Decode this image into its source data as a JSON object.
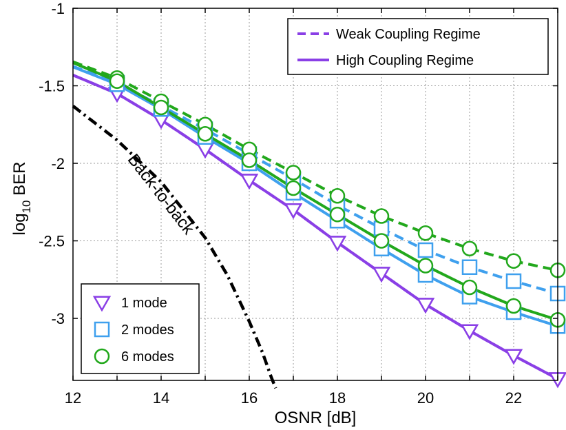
{
  "chart_data": {
    "type": "line",
    "title": "",
    "xlabel": "OSNR  [dB]",
    "ylabel_main": "log",
    "ylabel_sub": "10",
    "ylabel_tail": " BER",
    "xlim": [
      12,
      23
    ],
    "ylim": [
      -3.4,
      -1
    ],
    "xticks": [
      12,
      14,
      16,
      18,
      20,
      22
    ],
    "yticks": [
      -1,
      -1.5,
      -2,
      -2.5,
      -3
    ],
    "grid": true,
    "colors": {
      "purple": "#8a3fe6",
      "blue": "#3fa0ee",
      "green": "#22a81c",
      "black": "#000000"
    },
    "x": [
      13,
      14,
      15,
      16,
      17,
      18,
      19,
      20,
      21,
      22,
      23
    ],
    "series": [
      {
        "name": "1 mode - Weak Coupling Regime",
        "color": "purple",
        "style": "dashed",
        "marker": "triangle-down",
        "values": [
          -1.55,
          -1.72,
          -1.91,
          -2.11,
          -2.3,
          -2.51,
          -2.71,
          -2.91,
          -3.08,
          -3.24,
          -3.39
        ]
      },
      {
        "name": "1 mode - High Coupling Regime",
        "color": "purple",
        "style": "solid",
        "marker": "triangle-down",
        "values": [
          -1.55,
          -1.72,
          -1.91,
          -2.11,
          -2.3,
          -2.51,
          -2.71,
          -2.91,
          -3.08,
          -3.24,
          -3.39
        ]
      },
      {
        "name": "2 modes - Weak Coupling Regime",
        "color": "blue",
        "style": "dashed",
        "marker": "square",
        "values": [
          -1.48,
          -1.63,
          -1.78,
          -1.94,
          -2.1,
          -2.27,
          -2.42,
          -2.56,
          -2.67,
          -2.76,
          -2.84
        ]
      },
      {
        "name": "2 modes - High Coupling Regime",
        "color": "blue",
        "style": "solid",
        "marker": "square",
        "values": [
          -1.49,
          -1.65,
          -1.83,
          -2.0,
          -2.19,
          -2.37,
          -2.55,
          -2.72,
          -2.86,
          -2.96,
          -3.05
        ]
      },
      {
        "name": "6 modes - Weak Coupling Regime",
        "color": "green",
        "style": "dashed",
        "marker": "circle",
        "values": [
          -1.45,
          -1.6,
          -1.75,
          -1.91,
          -2.06,
          -2.21,
          -2.34,
          -2.45,
          -2.55,
          -2.63,
          -2.69
        ]
      },
      {
        "name": "6 modes - High Coupling Regime",
        "color": "green",
        "style": "solid",
        "marker": "circle",
        "values": [
          -1.47,
          -1.64,
          -1.81,
          -1.98,
          -2.16,
          -2.33,
          -2.5,
          -2.66,
          -2.8,
          -2.92,
          -3.01
        ]
      },
      {
        "name": "Back-to-back",
        "color": "black",
        "style": "dashdot",
        "marker": "none",
        "x": [
          12,
          13,
          14,
          15,
          15.5,
          16,
          16.3,
          16.5,
          16.6
        ],
        "values": [
          -1.63,
          -1.85,
          -2.12,
          -2.48,
          -2.72,
          -3.02,
          -3.22,
          -3.38,
          -3.45
        ]
      }
    ],
    "annotations": [
      {
        "text": "Back-to-back",
        "x": 13.9,
        "y": -2.22,
        "rotation_deg": 52
      }
    ],
    "legends": [
      {
        "location": "top-right",
        "entries": [
          {
            "label": "Weak Coupling Regime",
            "style": "dashed",
            "color": "purple"
          },
          {
            "label": "High Coupling Regime",
            "style": "solid",
            "color": "purple"
          }
        ]
      },
      {
        "location": "bottom-left",
        "entries": [
          {
            "label": "1 mode",
            "marker": "triangle-down",
            "color": "purple"
          },
          {
            "label": "2 modes",
            "marker": "square",
            "color": "blue"
          },
          {
            "label": "6 modes",
            "marker": "circle",
            "color": "green"
          }
        ]
      }
    ]
  }
}
